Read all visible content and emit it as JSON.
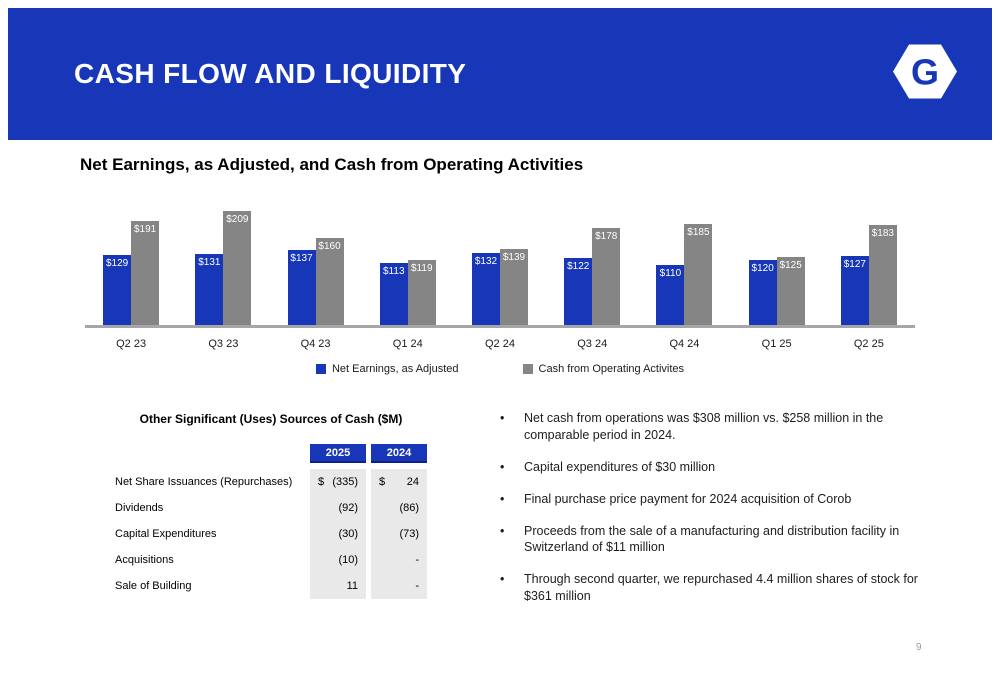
{
  "colors": {
    "brand_blue": "#1737b8",
    "bar_gray": "#858585",
    "axis_gray": "#a6a6a6",
    "table_cell_bg": "#e9e9e9"
  },
  "slide": {
    "title": "CASH FLOW AND LIQUIDITY",
    "page_number": "9"
  },
  "chart_heading": "Net Earnings, as Adjusted, and Cash from Operating Activities",
  "chart_data": {
    "type": "bar",
    "categories": [
      "Q2 23",
      "Q3 23",
      "Q4 23",
      "Q1 24",
      "Q2 24",
      "Q3 24",
      "Q4 24",
      "Q1 25",
      "Q2 25"
    ],
    "series": [
      {
        "name": "Net Earnings, as Adjusted",
        "color": "#1737b8",
        "values": [
          129,
          131,
          137,
          113,
          132,
          122,
          110,
          120,
          127
        ]
      },
      {
        "name": "Cash from Operating Activites",
        "color": "#858585",
        "values": [
          191,
          209,
          160,
          119,
          139,
          178,
          185,
          125,
          183
        ]
      }
    ],
    "value_prefix": "$",
    "value_labels": "inside-top",
    "ylim": [
      0,
      220
    ],
    "grid": false,
    "legend_position": "bottom"
  },
  "table": {
    "title": "Other Significant (Uses) Sources of Cash ($M)",
    "columns": [
      "2025",
      "2024"
    ],
    "rows": [
      {
        "label": "Net Share Issuances (Repurchases)",
        "values": [
          "(335)",
          "24"
        ],
        "show_dollar": true
      },
      {
        "label": "Dividends",
        "values": [
          "(92)",
          "(86)"
        ],
        "show_dollar": false
      },
      {
        "label": "Capital Expenditures",
        "values": [
          "(30)",
          "(73)"
        ],
        "show_dollar": false
      },
      {
        "label": "Acquisitions",
        "values": [
          "(10)",
          "-"
        ],
        "show_dollar": false
      },
      {
        "label": "Sale of Building",
        "values": [
          "11",
          "-"
        ],
        "show_dollar": false
      }
    ]
  },
  "bullets": [
    "Net cash from operations was $308 million vs. $258 million in the comparable period in 2024.",
    "Capital expenditures of $30 million",
    "Final purchase price payment for 2024 acquisition of Corob",
    "Proceeds from the sale of a manufacturing and distribution facility in Switzerland of $11 million",
    "Through second quarter, we repurchased 4.4 million shares of stock for $361 million"
  ]
}
